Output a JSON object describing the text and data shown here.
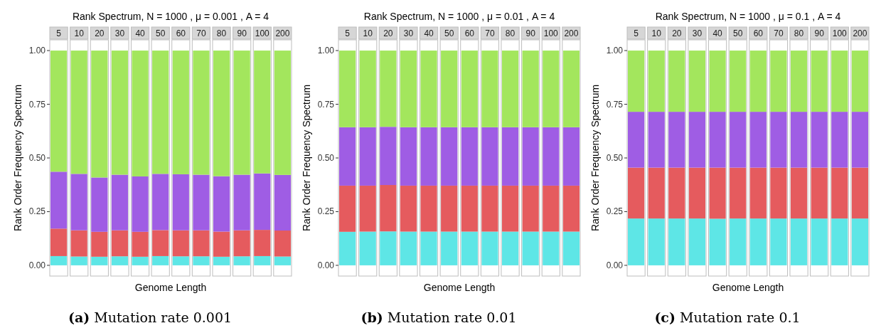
{
  "chart_data": [
    {
      "type": "bar",
      "title": "Rank Spectrum, N = 1000 , μ = 0.001 , A =  4",
      "xlabel": "Genome Length",
      "ylabel": "Rank Order Frequency Spectrum",
      "annotations": [
        "(a) Mutation rate 0.001"
      ],
      "categories": [
        "5",
        "10",
        "20",
        "30",
        "40",
        "50",
        "60",
        "70",
        "80",
        "90",
        "100",
        "200"
      ],
      "stacked": true,
      "ylim": [
        -0.05,
        1.05
      ],
      "yticks": [
        {
          "value": 0,
          "label": "0.00"
        },
        {
          "value": 0.25,
          "label": "0.25"
        },
        {
          "value": 0.5,
          "label": "0.50"
        },
        {
          "value": 0.75,
          "label": "0.75"
        },
        {
          "value": 1,
          "label": "1.00"
        }
      ],
      "grid": false,
      "series": [
        {
          "color": "#5ee6e6",
          "values": [
            0.043,
            0.041,
            0.04,
            0.042,
            0.04,
            0.043,
            0.042,
            0.042,
            0.04,
            0.042,
            0.043,
            0.041
          ]
        },
        {
          "color": "#e55b5e",
          "values": [
            0.128,
            0.122,
            0.116,
            0.121,
            0.116,
            0.121,
            0.121,
            0.121,
            0.117,
            0.121,
            0.122,
            0.121
          ]
        },
        {
          "color": "#9f5de4",
          "values": [
            0.265,
            0.263,
            0.253,
            0.259,
            0.258,
            0.262,
            0.261,
            0.259,
            0.258,
            0.259,
            0.263,
            0.259
          ]
        },
        {
          "color": "#a3e65d",
          "values": [
            0.564,
            0.574,
            0.591,
            0.578,
            0.586,
            0.574,
            0.576,
            0.578,
            0.585,
            0.578,
            0.572,
            0.579
          ]
        }
      ]
    },
    {
      "type": "bar",
      "title": "Rank Spectrum, N = 1000 , μ = 0.01 , A =  4",
      "xlabel": "Genome Length",
      "ylabel": "Rank Order Frequency Spectrum",
      "annotations": [
        "(b) Mutation rate 0.01"
      ],
      "categories": [
        "5",
        "10",
        "20",
        "30",
        "40",
        "50",
        "60",
        "70",
        "80",
        "90",
        "100",
        "200"
      ],
      "stacked": true,
      "ylim": [
        -0.05,
        1.05
      ],
      "yticks": [
        {
          "value": 0,
          "label": "0.00"
        },
        {
          "value": 0.25,
          "label": "0.25"
        },
        {
          "value": 0.5,
          "label": "0.50"
        },
        {
          "value": 0.75,
          "label": "0.75"
        },
        {
          "value": 1,
          "label": "1.00"
        }
      ],
      "grid": false,
      "series": [
        {
          "color": "#5ee6e6",
          "values": [
            0.156,
            0.157,
            0.158,
            0.157,
            0.157,
            0.157,
            0.157,
            0.157,
            0.157,
            0.157,
            0.157,
            0.157
          ]
        },
        {
          "color": "#e55b5e",
          "values": [
            0.215,
            0.214,
            0.216,
            0.214,
            0.214,
            0.214,
            0.214,
            0.214,
            0.214,
            0.214,
            0.214,
            0.214
          ]
        },
        {
          "color": "#9f5de4",
          "values": [
            0.272,
            0.272,
            0.271,
            0.272,
            0.272,
            0.272,
            0.272,
            0.272,
            0.272,
            0.272,
            0.272,
            0.272
          ]
        },
        {
          "color": "#a3e65d",
          "values": [
            0.357,
            0.357,
            0.355,
            0.357,
            0.357,
            0.357,
            0.357,
            0.357,
            0.357,
            0.357,
            0.357,
            0.357
          ]
        }
      ]
    },
    {
      "type": "bar",
      "title": "Rank Spectrum, N = 1000 , μ = 0.1 , A =  4",
      "xlabel": "Genome Length",
      "ylabel": "Rank Order Frequency Spectrum",
      "annotations": [
        "(c) Mutation rate 0.1"
      ],
      "categories": [
        "5",
        "10",
        "20",
        "30",
        "40",
        "50",
        "60",
        "70",
        "80",
        "90",
        "100",
        "200"
      ],
      "stacked": true,
      "ylim": [
        -0.05,
        1.05
      ],
      "yticks": [
        {
          "value": 0,
          "label": "0.00"
        },
        {
          "value": 0.25,
          "label": "0.25"
        },
        {
          "value": 0.5,
          "label": "0.50"
        },
        {
          "value": 0.75,
          "label": "0.75"
        },
        {
          "value": 1,
          "label": "1.00"
        }
      ],
      "grid": false,
      "series": [
        {
          "color": "#5ee6e6",
          "values": [
            0.218,
            0.218,
            0.218,
            0.218,
            0.217,
            0.218,
            0.218,
            0.218,
            0.218,
            0.218,
            0.218,
            0.218
          ]
        },
        {
          "color": "#e55b5e",
          "values": [
            0.237,
            0.237,
            0.237,
            0.237,
            0.238,
            0.237,
            0.237,
            0.237,
            0.237,
            0.237,
            0.237,
            0.237
          ]
        },
        {
          "color": "#9f5de4",
          "values": [
            0.26,
            0.26,
            0.26,
            0.26,
            0.26,
            0.26,
            0.26,
            0.26,
            0.26,
            0.26,
            0.26,
            0.26
          ]
        },
        {
          "color": "#a3e65d",
          "values": [
            0.285,
            0.285,
            0.285,
            0.285,
            0.285,
            0.285,
            0.285,
            0.285,
            0.285,
            0.285,
            0.285,
            0.285
          ]
        }
      ]
    }
  ]
}
